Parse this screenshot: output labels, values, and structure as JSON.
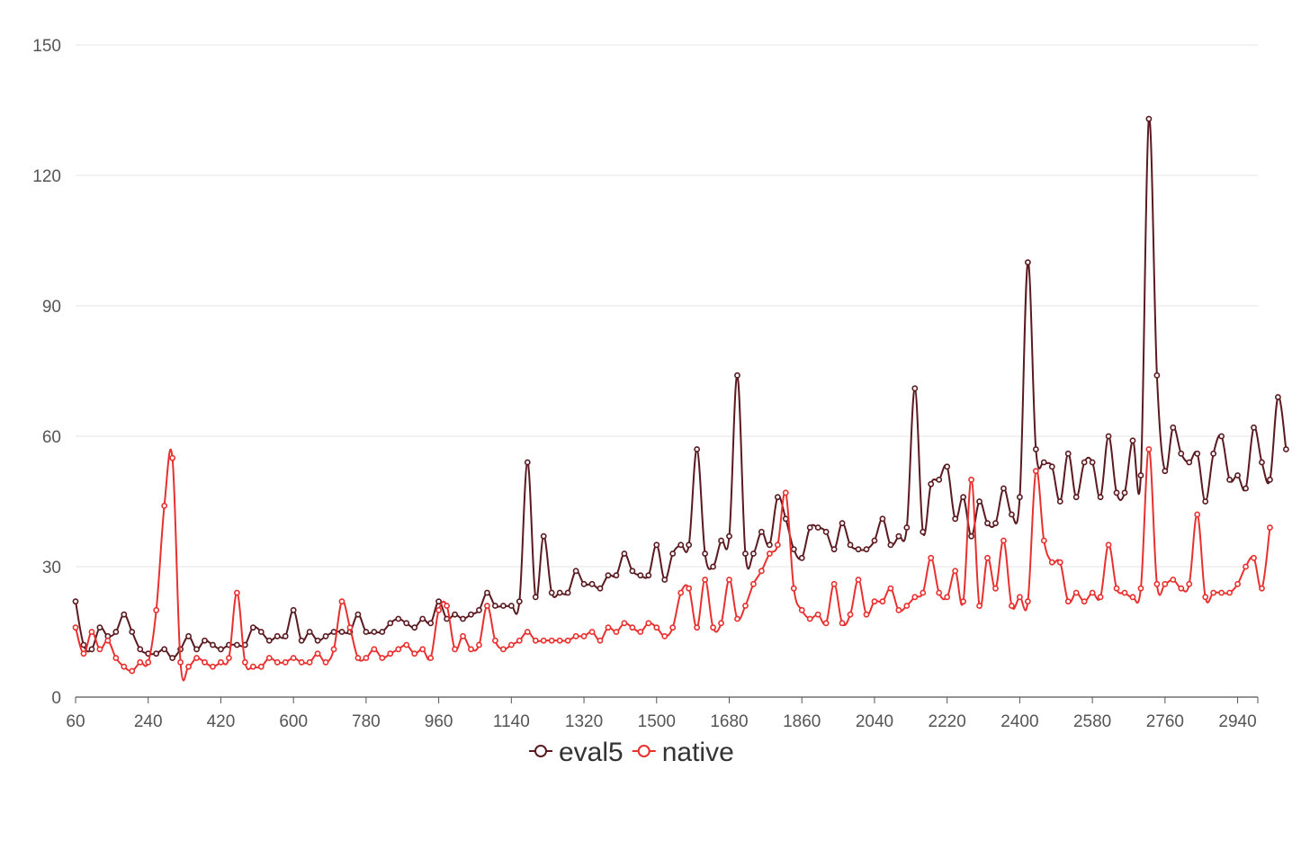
{
  "chart_data": {
    "type": "line",
    "title": "",
    "xlabel": "",
    "ylabel": "",
    "ylim": [
      0,
      150
    ],
    "xlim": [
      60,
      2990
    ],
    "y_ticks": [
      "0",
      "30",
      "60",
      "90",
      "120",
      "150"
    ],
    "x_ticks": [
      "60",
      "240",
      "420",
      "600",
      "780",
      "960",
      "1140",
      "1320",
      "1500",
      "1680",
      "1860",
      "2040",
      "2220",
      "2400",
      "2580",
      "2760",
      "2940"
    ],
    "grid": "horizontal",
    "legend_position": "bottom-center",
    "x_step": 20,
    "series": [
      {
        "name": "eval5",
        "color": "#5a1a1f",
        "values": [
          22,
          12,
          11,
          16,
          14,
          15,
          19,
          15,
          11,
          10,
          10,
          11,
          9,
          11,
          14,
          11,
          13,
          12,
          11,
          12,
          12,
          12,
          16,
          15,
          13,
          14,
          14,
          20,
          13,
          15,
          13,
          14,
          15,
          15,
          15,
          19,
          15,
          15,
          15,
          17,
          18,
          17,
          16,
          18,
          17,
          22,
          18,
          19,
          18,
          19,
          20,
          24,
          21,
          21,
          21,
          22,
          54,
          23,
          37,
          24,
          24,
          24,
          29,
          26,
          26,
          25,
          28,
          28,
          33,
          29,
          28,
          28,
          35,
          27,
          33,
          35,
          35,
          57,
          33,
          30,
          36,
          37,
          74,
          33,
          33,
          38,
          35,
          46,
          41,
          34,
          32,
          39,
          39,
          38,
          34,
          40,
          35,
          34,
          34,
          36,
          41,
          35,
          37,
          39,
          71,
          38,
          49,
          50,
          53,
          41,
          46,
          37,
          45,
          40,
          40,
          48,
          42,
          46,
          100,
          57,
          54,
          53,
          45,
          56,
          46,
          54,
          54,
          46,
          60,
          47,
          47,
          59,
          51,
          133,
          74,
          52,
          62,
          56,
          54,
          56,
          45,
          56,
          60,
          50,
          51,
          48,
          62,
          54,
          50,
          69,
          57
        ]
      },
      {
        "name": "native",
        "color": "#e8302f",
        "values": [
          16,
          10,
          15,
          11,
          13,
          9,
          7,
          6,
          8,
          8,
          20,
          44,
          55,
          8,
          7,
          9,
          8,
          7,
          8,
          9,
          24,
          8,
          7,
          7,
          9,
          8,
          8,
          9,
          8,
          8,
          10,
          8,
          11,
          22,
          16,
          9,
          9,
          11,
          9,
          10,
          11,
          12,
          10,
          11,
          9,
          20,
          21,
          11,
          14,
          11,
          12,
          21,
          13,
          11,
          12,
          13,
          15,
          13,
          13,
          13,
          13,
          13,
          14,
          14,
          15,
          13,
          16,
          15,
          17,
          16,
          15,
          17,
          16,
          14,
          16,
          24,
          25,
          16,
          27,
          16,
          17,
          27,
          18,
          21,
          26,
          29,
          33,
          35,
          47,
          25,
          20,
          18,
          19,
          17,
          26,
          17,
          19,
          27,
          19,
          22,
          22,
          25,
          20,
          21,
          23,
          24,
          32,
          24,
          23,
          29,
          22,
          50,
          21,
          32,
          25,
          36,
          21,
          23,
          22,
          52,
          36,
          31,
          31,
          22,
          24,
          22,
          24,
          23,
          35,
          25,
          24,
          23,
          25,
          57,
          26,
          26,
          27,
          25,
          26,
          42,
          23,
          24,
          24,
          24,
          26,
          30,
          32,
          25,
          39
        ]
      }
    ]
  }
}
